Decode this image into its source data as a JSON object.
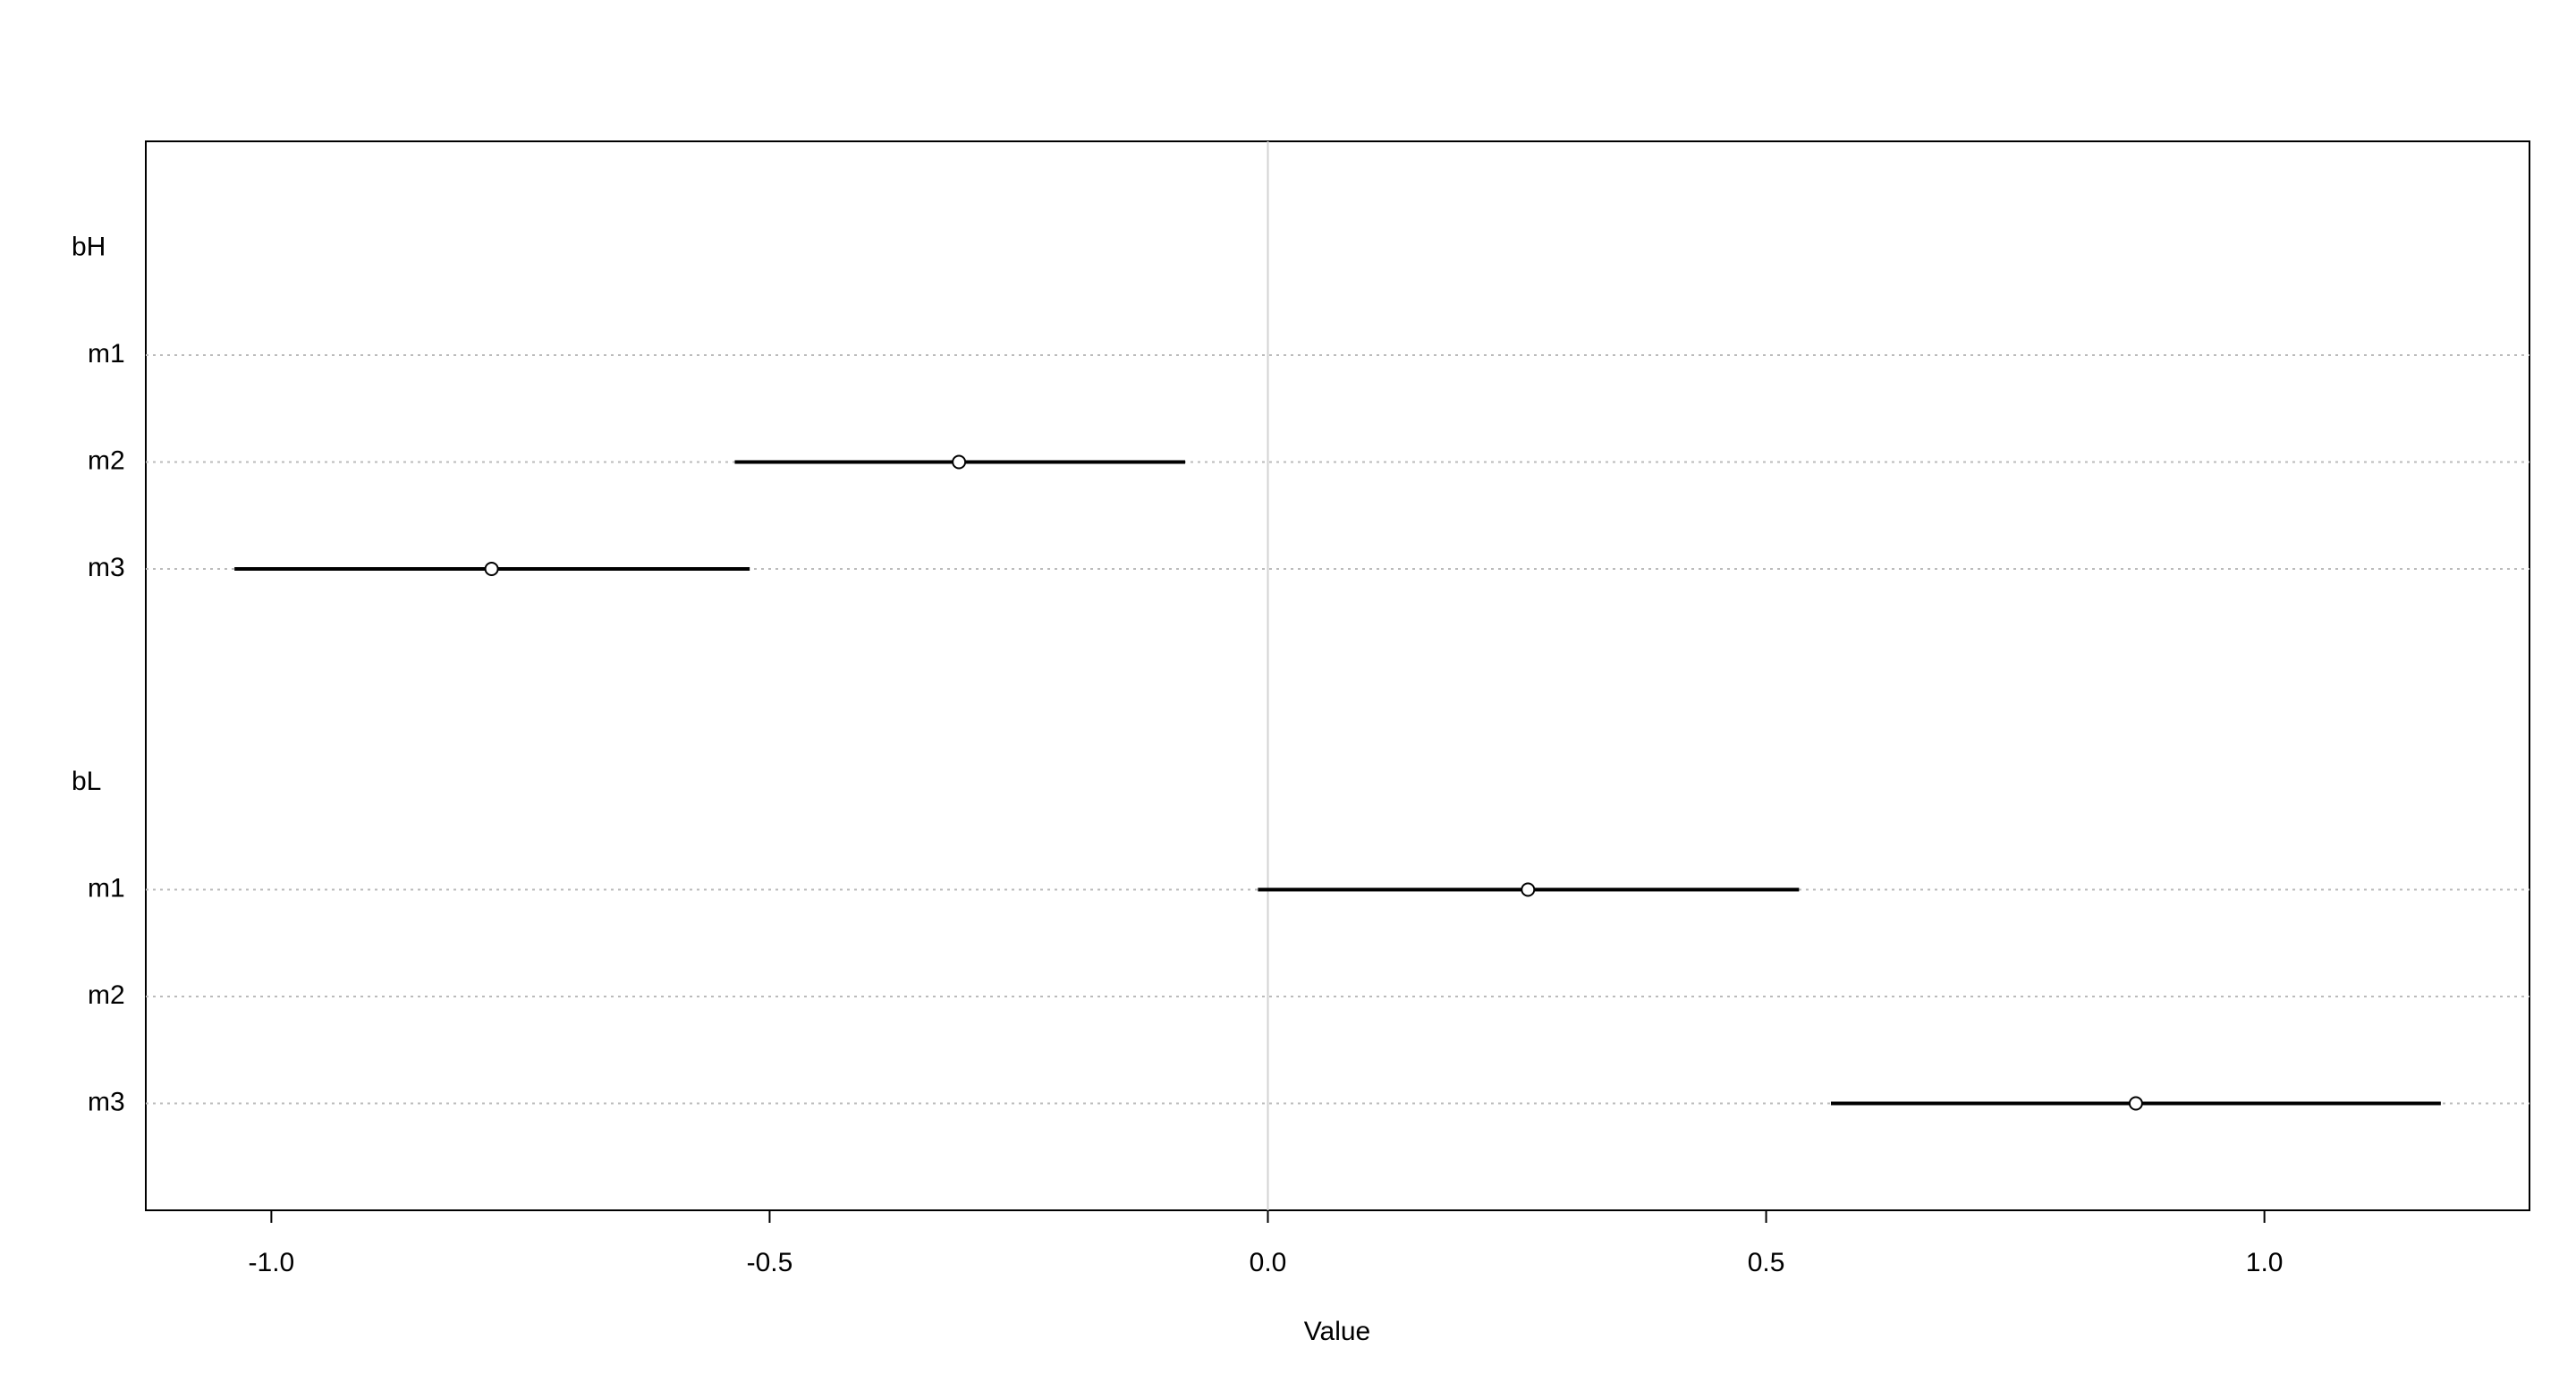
{
  "chart_data": {
    "type": "interval",
    "xlabel": "Value",
    "groups": [
      {
        "name": "bH",
        "rows": [
          "m1",
          "m2",
          "m3"
        ],
        "values": [
          null,
          -0.31,
          -0.779
        ],
        "lower": [
          null,
          -0.535,
          -1.037
        ],
        "upper": [
          null,
          -0.083,
          -0.52
        ]
      },
      {
        "name": "bL",
        "rows": [
          "m1",
          "m2",
          "m3"
        ],
        "values": [
          0.261,
          null,
          0.871
        ],
        "lower": [
          -0.01,
          null,
          0.565
        ],
        "upper": [
          0.533,
          null,
          1.177
        ]
      }
    ],
    "xlim": [
      -1.126,
      1.266
    ],
    "xticks": [
      {
        "value": -1,
        "label": "-1.0"
      },
      {
        "value": -0.5,
        "label": "-0.5"
      },
      {
        "value": 0,
        "label": "0.0"
      },
      {
        "value": 0.5,
        "label": "0.5"
      },
      {
        "value": 1,
        "label": "1.0"
      }
    ],
    "reference_line": 0,
    "grid": true,
    "color": "#000000"
  }
}
